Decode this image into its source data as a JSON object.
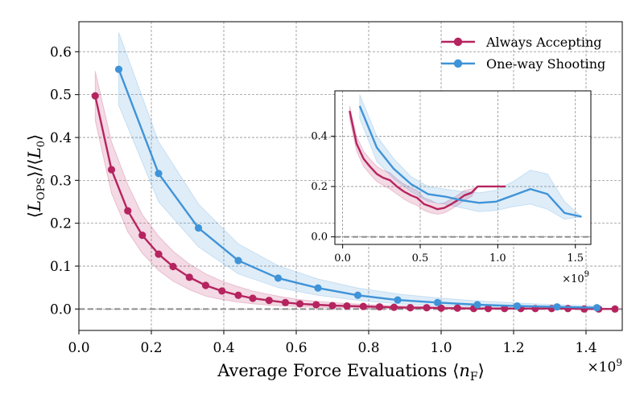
{
  "chart_data": [
    {
      "type": "line",
      "panel": "main",
      "ylabel_math": {
        "main": "L",
        "sub": "OPS",
        "base": "L",
        "base_sub": "0"
      },
      "xlabel_text": "Average Force Evaluations",
      "xlabel_math": {
        "main": "n",
        "sub": "F"
      },
      "x_multiplier": "×10",
      "x_multiplier_exp": "9",
      "xlim": [
        0.0,
        1.5
      ],
      "ylim": [
        -0.05,
        0.67
      ],
      "xticks": [
        "0.0",
        "0.2",
        "0.4",
        "0.6",
        "0.8",
        "1.0",
        "1.2",
        "1.4"
      ],
      "yticks": [
        "0.0",
        "0.1",
        "0.2",
        "0.3",
        "0.4",
        "0.5",
        "0.6"
      ],
      "grid": true,
      "legend_position": "top-right",
      "series": [
        {
          "name": "Always Accepting",
          "color": "#b5245f",
          "x": [
            0.045,
            0.09,
            0.135,
            0.175,
            0.22,
            0.26,
            0.305,
            0.35,
            0.395,
            0.44,
            0.48,
            0.525,
            0.57,
            0.61,
            0.655,
            0.7,
            0.74,
            0.785,
            0.83,
            0.87,
            0.915,
            0.96,
            1.0,
            1.045,
            1.09,
            1.13,
            1.175,
            1.22,
            1.26,
            1.305,
            1.35,
            1.395,
            1.435,
            1.48
          ],
          "y": [
            0.497,
            0.325,
            0.229,
            0.172,
            0.128,
            0.099,
            0.074,
            0.055,
            0.042,
            0.032,
            0.025,
            0.02,
            0.015,
            0.012,
            0.01,
            0.008,
            0.007,
            0.006,
            0.005,
            0.004,
            0.003,
            0.003,
            0.002,
            0.002,
            0.001,
            0.001,
            0.001,
            0.001,
            0.001,
            0.001,
            0.001,
            0.0,
            0.0,
            0.0
          ],
          "band_low": [
            0.44,
            0.27,
            0.18,
            0.13,
            0.09,
            0.065,
            0.045,
            0.03,
            0.022,
            0.016,
            0.012,
            0.009,
            0.007,
            0.005,
            0.004,
            0.003,
            0.003,
            0.002,
            0.002,
            0.001,
            0.001,
            0.001,
            0.001,
            0.0,
            0.0,
            0.0,
            0.0,
            0.0,
            0.0,
            0.0,
            0.0,
            0.0,
            0.0,
            0.0
          ],
          "band_high": [
            0.555,
            0.39,
            0.29,
            0.22,
            0.17,
            0.135,
            0.105,
            0.082,
            0.065,
            0.052,
            0.042,
            0.034,
            0.027,
            0.022,
            0.018,
            0.015,
            0.013,
            0.011,
            0.009,
            0.008,
            0.007,
            0.006,
            0.005,
            0.004,
            0.004,
            0.003,
            0.003,
            0.003,
            0.002,
            0.002,
            0.002,
            0.002,
            0.002,
            0.002
          ]
        },
        {
          "name": "One-way Shooting",
          "color": "#3f93d8",
          "x": [
            0.11,
            0.22,
            0.33,
            0.44,
            0.55,
            0.66,
            0.77,
            0.88,
            0.99,
            1.1,
            1.21,
            1.32,
            1.43
          ],
          "y": [
            0.559,
            0.316,
            0.189,
            0.113,
            0.072,
            0.049,
            0.032,
            0.021,
            0.015,
            0.01,
            0.007,
            0.005,
            0.003
          ],
          "band_low": [
            0.475,
            0.25,
            0.145,
            0.082,
            0.05,
            0.032,
            0.02,
            0.012,
            0.008,
            0.005,
            0.003,
            0.002,
            0.001
          ],
          "band_high": [
            0.645,
            0.39,
            0.245,
            0.152,
            0.101,
            0.07,
            0.049,
            0.035,
            0.026,
            0.019,
            0.014,
            0.01,
            0.007
          ]
        }
      ]
    },
    {
      "type": "line",
      "panel": "inset",
      "xlim": [
        -0.05,
        1.6
      ],
      "ylim": [
        -0.03,
        0.58
      ],
      "xticks": [
        "0.0",
        "0.5",
        "1.0",
        "1.5"
      ],
      "yticks": [
        "0.0",
        "0.2",
        "0.4"
      ],
      "x_multiplier": "×10",
      "x_multiplier_exp": "9",
      "grid": true,
      "series": [
        {
          "name": "Always Accepting",
          "color": "#b5245f",
          "x": [
            0.045,
            0.09,
            0.135,
            0.175,
            0.22,
            0.26,
            0.305,
            0.35,
            0.395,
            0.44,
            0.48,
            0.525,
            0.57,
            0.61,
            0.655,
            0.7,
            0.74,
            0.785,
            0.83,
            0.87,
            0.915,
            0.96,
            1.0,
            1.05
          ],
          "y": [
            0.5,
            0.37,
            0.31,
            0.28,
            0.25,
            0.235,
            0.225,
            0.2,
            0.18,
            0.165,
            0.155,
            0.13,
            0.12,
            0.11,
            0.115,
            0.13,
            0.145,
            0.165,
            0.175,
            0.2,
            0.2,
            0.2,
            0.2,
            0.2
          ],
          "band_low": [
            0.47,
            0.34,
            0.28,
            0.25,
            0.22,
            0.205,
            0.19,
            0.17,
            0.15,
            0.135,
            0.125,
            0.105,
            0.095,
            0.09,
            0.095,
            0.11,
            0.125,
            0.145,
            0.16,
            0.2,
            0.2,
            0.2,
            0.2,
            0.2
          ],
          "band_high": [
            0.52,
            0.4,
            0.34,
            0.31,
            0.28,
            0.265,
            0.255,
            0.23,
            0.21,
            0.195,
            0.185,
            0.155,
            0.145,
            0.13,
            0.135,
            0.15,
            0.165,
            0.185,
            0.19,
            0.2,
            0.2,
            0.2,
            0.2,
            0.2
          ]
        },
        {
          "name": "One-way Shooting",
          "color": "#3f93d8",
          "x": [
            0.11,
            0.22,
            0.33,
            0.44,
            0.55,
            0.66,
            0.77,
            0.88,
            0.99,
            1.1,
            1.21,
            1.32,
            1.43,
            1.54
          ],
          "y": [
            0.52,
            0.355,
            0.27,
            0.21,
            0.17,
            0.16,
            0.145,
            0.135,
            0.14,
            0.165,
            0.19,
            0.17,
            0.095,
            0.08
          ],
          "band_low": [
            0.47,
            0.3,
            0.23,
            0.18,
            0.14,
            0.13,
            0.115,
            0.1,
            0.105,
            0.12,
            0.13,
            0.11,
            0.07,
            0.08
          ],
          "band_high": [
            0.565,
            0.4,
            0.31,
            0.24,
            0.2,
            0.19,
            0.18,
            0.175,
            0.185,
            0.22,
            0.265,
            0.25,
            0.14,
            0.08
          ]
        }
      ]
    }
  ]
}
